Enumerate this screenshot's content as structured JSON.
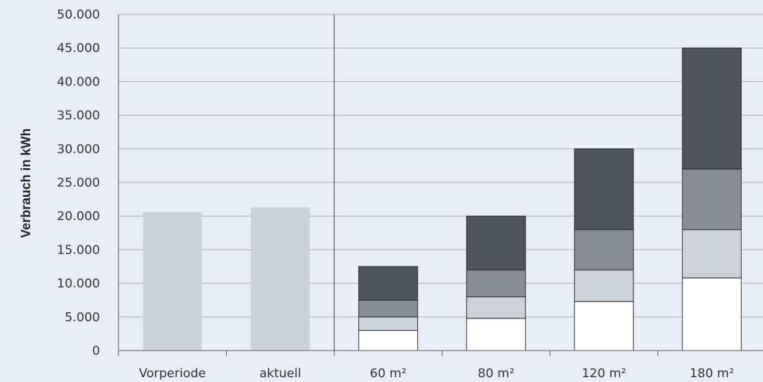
{
  "chart_data": {
    "type": "bar",
    "ylabel": "Verbrauch in kWh",
    "xlabel": "",
    "title": "",
    "ylim": [
      0,
      50000
    ],
    "yticks": [
      0,
      5000,
      10000,
      15000,
      20000,
      25000,
      30000,
      35000,
      40000,
      45000,
      50000
    ],
    "ytick_labels": [
      "0",
      "5.000",
      "10.000",
      "15.000",
      "20.000",
      "25.000",
      "30.000",
      "35.000",
      "40.000",
      "45.000",
      "50.000"
    ],
    "grid": true,
    "legend": "none",
    "single_bars": {
      "categories": [
        "Vorperiode",
        "aktuell"
      ],
      "values": [
        20600,
        21300
      ],
      "color": "#c9d1db"
    },
    "stacked_bars": {
      "categories": [
        "60 m²",
        "80 m²",
        "120 m²",
        "180 m²"
      ],
      "segments": [
        {
          "values": [
            3000,
            4800,
            7300,
            10800
          ],
          "color": "#ffffff"
        },
        {
          "values": [
            2000,
            3200,
            4700,
            7200
          ],
          "color": "#cbd2da"
        },
        {
          "values": [
            2500,
            4000,
            6000,
            9000
          ],
          "color": "#868d96"
        },
        {
          "values": [
            5000,
            8000,
            12000,
            18000
          ],
          "color": "#4e555e"
        }
      ]
    },
    "colors": {
      "background": "#e8eef7",
      "grid": "#a8acb2",
      "axis": "#555555"
    }
  }
}
